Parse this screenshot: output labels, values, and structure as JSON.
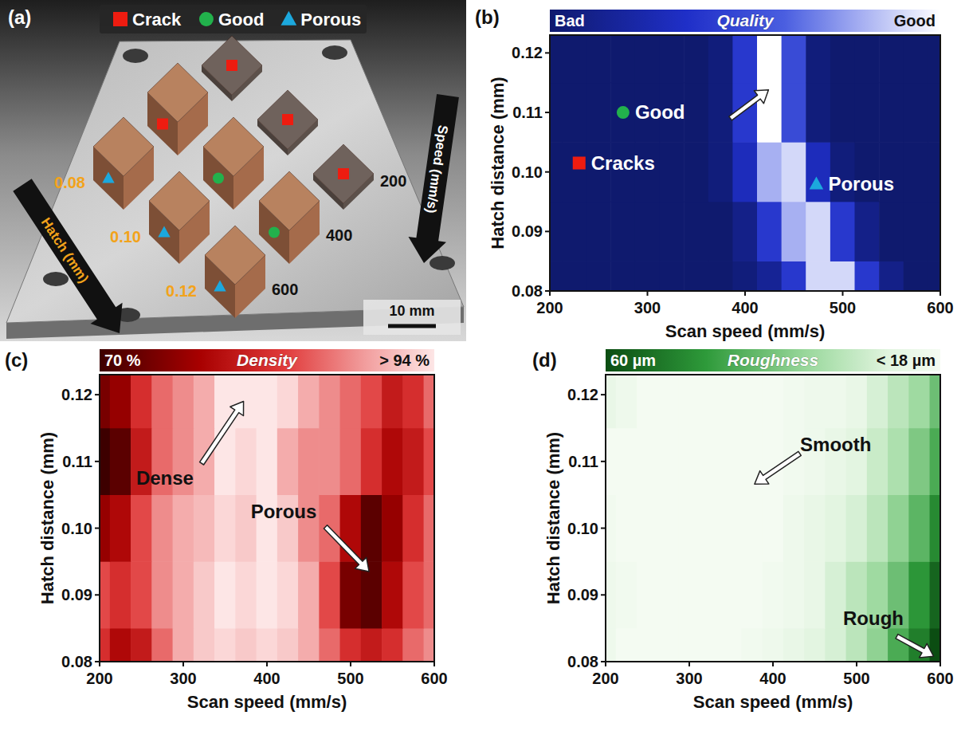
{
  "chart_data": [
    {
      "type": "photo",
      "panel": "(a)",
      "legend_items": [
        {
          "name": "Crack",
          "color": "#ee1c10",
          "marker": "square"
        },
        {
          "name": "Good",
          "color": "#22b14c",
          "marker": "circle"
        },
        {
          "name": "Porous",
          "color": "#1ca8dd",
          "marker": "triangle"
        }
      ],
      "hatch_title": "Hatch (mm)",
      "speed_title": "Speed (mm/s)",
      "hatch_levels": [
        0.08,
        {
          "value": 0.1,
          "label": "0.10"
        },
        0.12
      ],
      "speed_levels": [
        200,
        400,
        600
      ],
      "samples": [
        {
          "hatch": 0.08,
          "speed": 200,
          "result": "Crack"
        },
        {
          "hatch": 0.08,
          "speed": 400,
          "result": "Crack"
        },
        {
          "hatch": 0.1,
          "speed": 200,
          "result": "Crack"
        },
        {
          "hatch": 0.08,
          "speed": 600,
          "result": "Porous"
        },
        {
          "hatch": 0.1,
          "speed": 400,
          "result": "Good"
        },
        {
          "hatch": 0.12,
          "speed": 200,
          "result": "Crack"
        },
        {
          "hatch": 0.1,
          "speed": 600,
          "result": "Porous"
        },
        {
          "hatch": 0.12,
          "speed": 400,
          "result": "Good"
        },
        {
          "hatch": 0.12,
          "speed": 600,
          "result": "Porous"
        }
      ],
      "scale_bar": "10 mm"
    },
    {
      "type": "heatmap",
      "panel": "(b)",
      "x_label": "Scan speed (mm/s)",
      "y_label": "Hatch distance (mm)",
      "x": [
        200,
        225,
        250,
        275,
        300,
        325,
        350,
        375,
        400,
        425,
        450,
        475,
        500,
        525,
        550,
        575,
        600
      ],
      "y": [
        0.08,
        0.09,
        0.1,
        0.11,
        0.12
      ],
      "cells": [
        [
          0,
          0,
          0,
          0,
          0,
          0,
          0,
          0,
          0.05,
          0.15,
          0.4,
          0.9,
          0.9,
          0.4,
          0.1,
          0,
          0
        ],
        [
          0,
          0,
          0,
          0,
          0,
          0,
          0,
          0,
          0.1,
          0.4,
          0.8,
          0.9,
          0.4,
          0.1,
          0,
          0,
          0
        ],
        [
          0,
          0,
          0,
          0,
          0,
          0,
          0,
          0.05,
          0.3,
          0.8,
          0.9,
          0.3,
          0.05,
          0,
          0,
          0,
          0
        ],
        [
          0,
          0,
          0,
          0,
          0,
          0,
          0,
          0.05,
          0.4,
          1,
          0.5,
          0.05,
          0,
          0,
          0,
          0,
          0
        ],
        [
          0,
          0,
          0,
          0,
          0,
          0,
          0,
          0.05,
          0.4,
          1,
          0.5,
          0.05,
          0,
          0,
          0,
          0,
          0
        ]
      ],
      "xlim": [
        200,
        600
      ],
      "ylim": [
        0.08,
        0.123
      ],
      "xticks": [
        200,
        300,
        400,
        500,
        600
      ],
      "yticks": [
        0.08,
        0.09,
        {
          "value": 0.1,
          "label": "0.10"
        },
        0.11,
        0.12
      ],
      "colorbar": {
        "title": "Quality",
        "range": [
          0,
          1
        ],
        "ticks": [
          {
            "value": 0,
            "label": "Bad"
          },
          {
            "value": 1,
            "label": "Good"
          }
        ]
      },
      "annotations": [
        {
          "text": "Good",
          "x": 275,
          "y": 0.11,
          "marker": "circle",
          "color": "#22b14c"
        },
        {
          "text": "Cracks",
          "x": 230,
          "y": 0.1015,
          "marker": "square",
          "color": "#ee1c10"
        },
        {
          "text": "Porous",
          "x": 473,
          "y": 0.098,
          "marker": "triangle",
          "color": "#1ca8dd"
        },
        {
          "arrow": {
            "from": [
              385,
              0.109
            ],
            "to": [
              424,
              0.1138
            ]
          }
        }
      ]
    },
    {
      "type": "heatmap",
      "panel": "(c)",
      "x_label": "Scan speed (mm/s)",
      "y_label": "Hatch distance (mm)",
      "x": [
        200,
        225,
        250,
        275,
        300,
        325,
        350,
        375,
        400,
        425,
        450,
        475,
        500,
        525,
        550,
        575,
        600
      ],
      "y": [
        0.08,
        0.09,
        0.1,
        0.11,
        0.12
      ],
      "cells": [
        [
          82,
          78,
          80,
          86,
          90,
          92,
          93,
          92,
          93,
          92,
          90,
          86,
          82,
          80,
          82,
          86,
          88
        ],
        [
          84,
          82,
          84,
          88,
          90,
          92,
          94,
          93,
          95,
          93,
          90,
          84,
          74,
          72,
          78,
          84,
          86
        ],
        [
          76,
          78,
          84,
          88,
          90,
          91,
          93,
          92,
          94,
          92,
          88,
          86,
          78,
          72,
          76,
          82,
          86
        ],
        [
          70,
          72,
          80,
          86,
          88,
          90,
          95,
          93,
          94,
          90,
          88,
          88,
          86,
          82,
          78,
          80,
          84
        ],
        [
          74,
          76,
          82,
          86,
          88,
          90,
          96,
          95,
          96,
          93,
          90,
          88,
          86,
          84,
          80,
          82,
          86
        ]
      ],
      "xlim": [
        200,
        600
      ],
      "ylim": [
        0.08,
        0.123
      ],
      "xticks": [
        200,
        300,
        400,
        500,
        600
      ],
      "yticks": [
        0.08,
        0.09,
        {
          "value": 0.1,
          "label": "0.10"
        },
        0.11,
        0.12
      ],
      "colorbar": {
        "title": "Density",
        "range": [
          70,
          94
        ],
        "ticks": [
          {
            "value": 70,
            "label": "70 %"
          },
          {
            "value": 94,
            "label": "> 94 %"
          }
        ]
      },
      "annotations": [
        {
          "text": "Dense",
          "x": 278,
          "y": 0.1075,
          "arrow": {
            "from": [
              322,
              0.1097
            ],
            "to": [
              372,
              0.119
            ]
          }
        },
        {
          "text": "Porous",
          "x": 420,
          "y": 0.1025,
          "arrow": {
            "from": [
              470,
              0.1002
            ],
            "to": [
              522,
              0.0935
            ]
          }
        }
      ]
    },
    {
      "type": "heatmap",
      "panel": "(d)",
      "x_label": "Scan speed (mm/s)",
      "y_label": "Hatch distance (mm)",
      "x": [
        200,
        225,
        250,
        275,
        300,
        325,
        350,
        375,
        400,
        425,
        450,
        475,
        500,
        525,
        550,
        575,
        600
      ],
      "y": [
        0.08,
        0.09,
        0.1,
        0.11,
        0.12
      ],
      "cells": [
        [
          20,
          18,
          18,
          18,
          18,
          18,
          18,
          19,
          20,
          22,
          24,
          26,
          30,
          36,
          44,
          52,
          60
        ],
        [
          20,
          19,
          18,
          18,
          18,
          18,
          18,
          18,
          19,
          20,
          22,
          26,
          30,
          34,
          40,
          48,
          56
        ],
        [
          19,
          18,
          18,
          18,
          18,
          18,
          18,
          18,
          18,
          20,
          22,
          24,
          26,
          30,
          36,
          42,
          50
        ],
        [
          18,
          18,
          18,
          18,
          18,
          18,
          18,
          18,
          18,
          19,
          20,
          22,
          24,
          28,
          32,
          38,
          44
        ],
        [
          22,
          20,
          18,
          18,
          18,
          18,
          18,
          18,
          18,
          19,
          20,
          20,
          22,
          26,
          30,
          34,
          40
        ]
      ],
      "xlim": [
        200,
        600
      ],
      "ylim": [
        0.08,
        0.123
      ],
      "xticks": [
        200,
        300,
        400,
        500,
        600
      ],
      "yticks": [
        0.08,
        0.09,
        {
          "value": 0.1,
          "label": "0.10"
        },
        0.11,
        0.12
      ],
      "colorbar": {
        "title": "Roughness",
        "range": [
          60,
          18
        ],
        "ticks": [
          {
            "value": 60,
            "label": "60 µm"
          },
          {
            "value": 18,
            "label": "< 18 µm"
          }
        ]
      },
      "annotations": [
        {
          "text": "Smooth",
          "x": 475,
          "y": 0.1125,
          "arrow": {
            "from": [
              432,
              0.1112
            ],
            "to": [
              378,
              0.1066
            ]
          }
        },
        {
          "text": "Rough",
          "x": 520,
          "y": 0.0865,
          "arrow": {
            "from": [
              548,
              0.0838
            ],
            "to": [
              592,
              0.0808
            ]
          }
        }
      ]
    }
  ]
}
